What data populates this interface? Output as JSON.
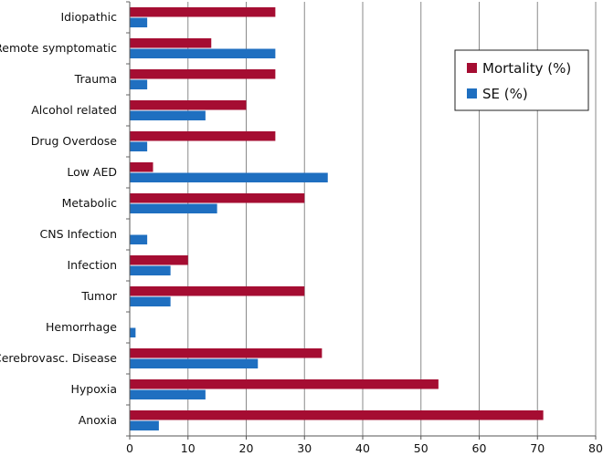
{
  "chart_data": {
    "type": "bar",
    "orientation": "horizontal",
    "categories": [
      "Idiopathic",
      "Remote symptomatic",
      "Trauma",
      "Alcohol related",
      "Drug Overdose",
      "Low AED",
      "Metabolic",
      "CNS Infection",
      "Infection",
      "Tumor",
      "Hemorrhage",
      "Cerebrovasc. Disease",
      "Hypoxia",
      "Anoxia"
    ],
    "series": [
      {
        "name": "Mortality (%)",
        "color": "#A50D32",
        "values": [
          25,
          14,
          25,
          20,
          25,
          4,
          30,
          0,
          10,
          30,
          0,
          33,
          53,
          71
        ]
      },
      {
        "name": "SE (%)",
        "color": "#1F6FC0",
        "values": [
          3,
          25,
          3,
          13,
          3,
          34,
          15,
          3,
          7,
          7,
          1,
          22,
          13,
          5
        ]
      }
    ],
    "xlim": [
      0,
      80
    ],
    "xticks": [
      0,
      10,
      20,
      30,
      40,
      50,
      60,
      70,
      80
    ],
    "grid": "vertical",
    "legend": "top-right"
  }
}
